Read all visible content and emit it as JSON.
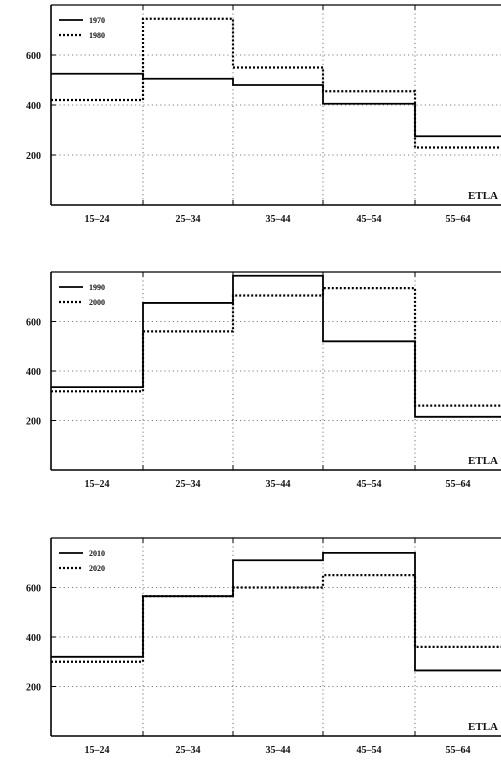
{
  "chart_data": [
    {
      "type": "line",
      "step": true,
      "categories": [
        "15–24",
        "25–34",
        "35–44",
        "45–54",
        "55–64"
      ],
      "yticks": [
        200,
        400,
        600
      ],
      "ylim": [
        0,
        800
      ],
      "grid": true,
      "legend_position": "top-left",
      "annotation": "ETLA",
      "series": [
        {
          "name": "1970",
          "style": "solid",
          "values": [
            525,
            505,
            480,
            405,
            275
          ]
        },
        {
          "name": "1980",
          "style": "dotted",
          "values": [
            420,
            745,
            550,
            455,
            230
          ]
        }
      ]
    },
    {
      "type": "line",
      "step": true,
      "categories": [
        "15–24",
        "25–34",
        "35–44",
        "45–54",
        "55–64"
      ],
      "yticks": [
        200,
        400,
        600
      ],
      "ylim": [
        0,
        800
      ],
      "grid": true,
      "legend_position": "top-left",
      "annotation": "ETLA",
      "series": [
        {
          "name": "1990",
          "style": "solid",
          "values": [
            335,
            675,
            785,
            520,
            215
          ]
        },
        {
          "name": "2000",
          "style": "dotted",
          "values": [
            318,
            560,
            705,
            735,
            260
          ]
        }
      ]
    },
    {
      "type": "line",
      "step": true,
      "categories": [
        "15–24",
        "25–34",
        "35–44",
        "45–54",
        "55–64"
      ],
      "yticks": [
        200,
        400,
        600
      ],
      "ylim": [
        0,
        800
      ],
      "grid": true,
      "legend_position": "top-left",
      "annotation": "ETLA",
      "series": [
        {
          "name": "2010",
          "style": "solid",
          "values": [
            320,
            565,
            710,
            740,
            265
          ]
        },
        {
          "name": "2020",
          "style": "dotted",
          "values": [
            300,
            565,
            600,
            650,
            360
          ]
        }
      ]
    }
  ]
}
